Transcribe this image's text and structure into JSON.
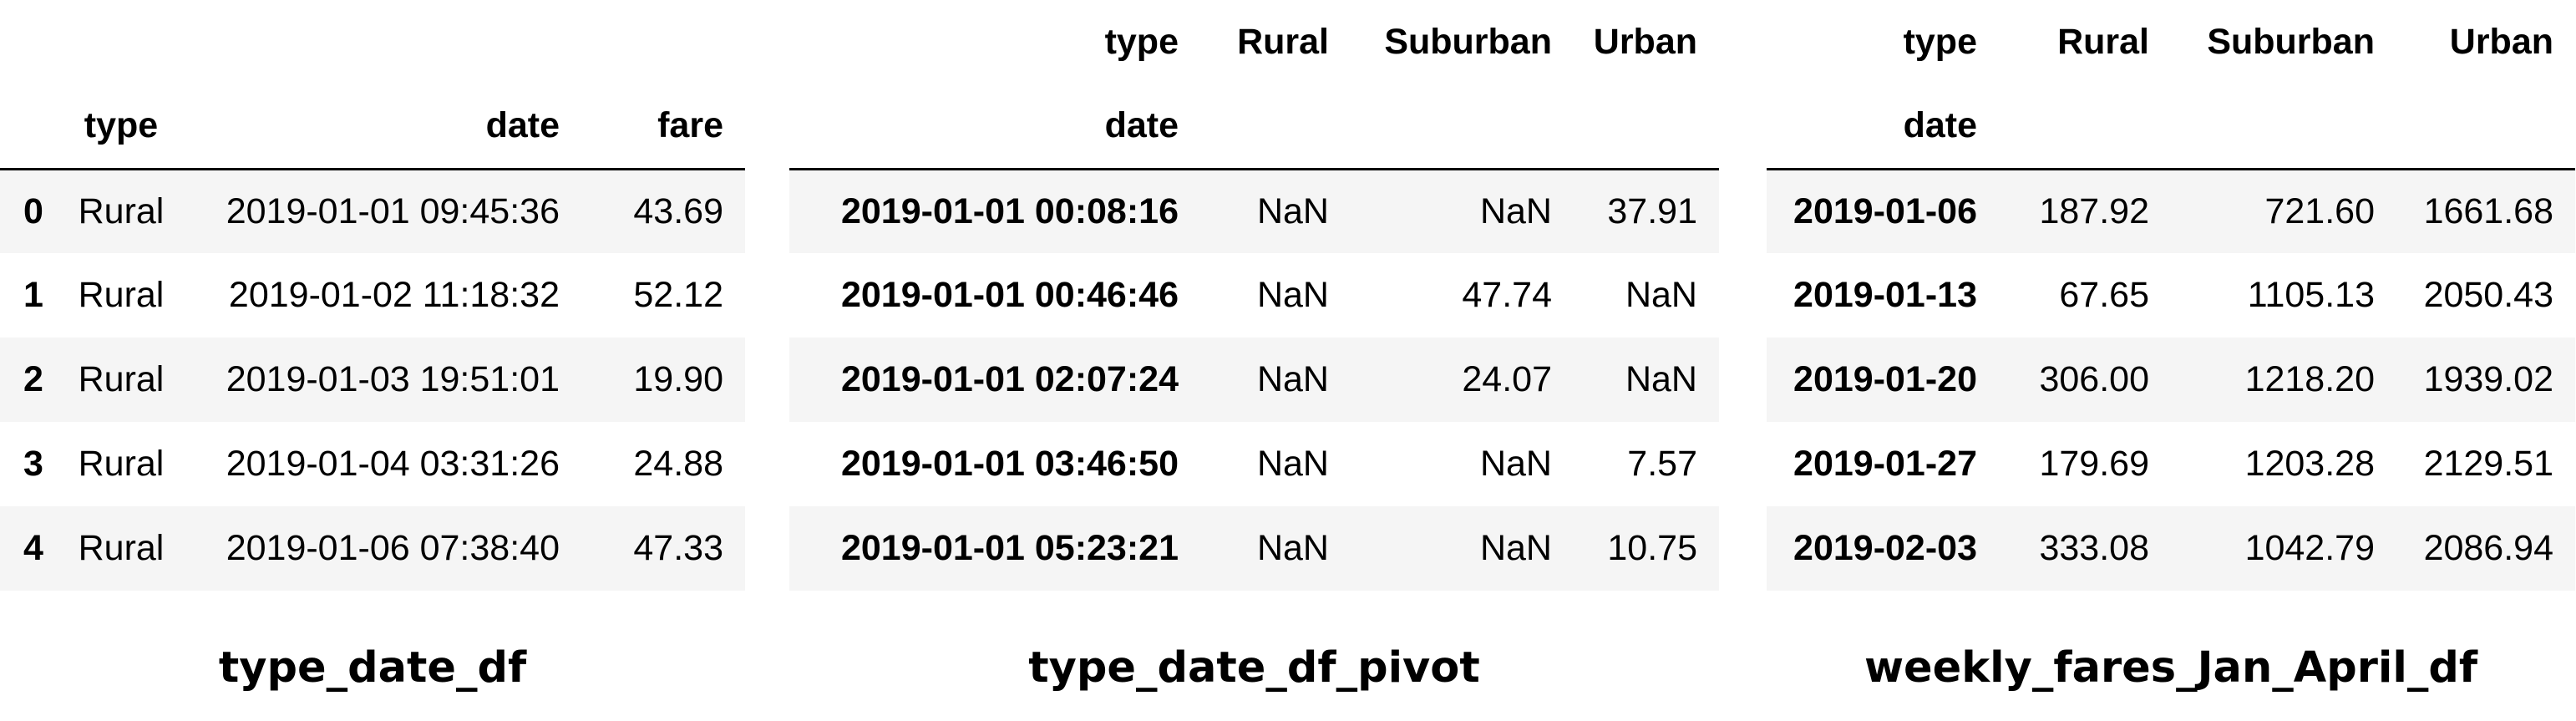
{
  "tables": [
    {
      "caption": "type_date_df",
      "header": [
        "",
        "type",
        "date",
        "fare"
      ],
      "rows": [
        [
          "0",
          "Rural",
          "2019-01-01 09:45:36",
          "43.69"
        ],
        [
          "1",
          "Rural",
          "2019-01-02 11:18:32",
          "52.12"
        ],
        [
          "2",
          "Rural",
          "2019-01-03 19:51:01",
          "19.90"
        ],
        [
          "3",
          "Rural",
          "2019-01-04 03:31:26",
          "24.88"
        ],
        [
          "4",
          "Rural",
          "2019-01-06 07:38:40",
          "47.33"
        ]
      ]
    },
    {
      "caption": "type_date_df_pivot",
      "columns_name": "type",
      "columns": [
        "Rural",
        "Suburban",
        "Urban"
      ],
      "index_name": "date",
      "rows": [
        [
          "2019-01-01 00:08:16",
          "NaN",
          "NaN",
          "37.91"
        ],
        [
          "2019-01-01 00:46:46",
          "NaN",
          "47.74",
          "NaN"
        ],
        [
          "2019-01-01 02:07:24",
          "NaN",
          "24.07",
          "NaN"
        ],
        [
          "2019-01-01 03:46:50",
          "NaN",
          "NaN",
          "7.57"
        ],
        [
          "2019-01-01 05:23:21",
          "NaN",
          "NaN",
          "10.75"
        ]
      ]
    },
    {
      "caption": "weekly_fares_Jan_April_df",
      "columns_name": "type",
      "columns": [
        "Rural",
        "Suburban",
        "Urban"
      ],
      "index_name": "date",
      "rows": [
        [
          "2019-01-06",
          "187.92",
          "721.60",
          "1661.68"
        ],
        [
          "2019-01-13",
          "67.65",
          "1105.13",
          "2050.43"
        ],
        [
          "2019-01-20",
          "306.00",
          "1218.20",
          "1939.02"
        ],
        [
          "2019-01-27",
          "179.69",
          "1203.28",
          "2129.51"
        ],
        [
          "2019-02-03",
          "333.08",
          "1042.79",
          "2086.94"
        ]
      ]
    }
  ]
}
